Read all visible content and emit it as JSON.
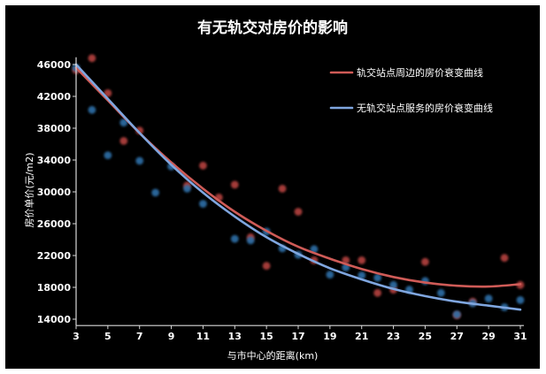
{
  "chart_data": {
    "type": "scatter",
    "title": "有无轨交对房价的影响",
    "xlabel": "与市中心的距离(km)",
    "ylabel": "房价单价(元/m2)",
    "xlim": [
      3,
      31
    ],
    "ylim": [
      13200,
      46800
    ],
    "xticks": [
      3,
      5,
      7,
      9,
      11,
      13,
      15,
      17,
      19,
      21,
      23,
      25,
      27,
      29,
      31
    ],
    "yticks": [
      14000,
      18000,
      22000,
      26000,
      30000,
      34000,
      38000,
      42000,
      46000
    ],
    "grid": false,
    "legend": "top-right",
    "series": [
      {
        "name": "轨交站点周边的房价衰变曲线",
        "type": "line",
        "color": "#cf5b57",
        "x": [
          3,
          5,
          7,
          9,
          11,
          13,
          15,
          17,
          19,
          21,
          23,
          25,
          27,
          29,
          31
        ],
        "y": [
          45600,
          41500,
          37400,
          33700,
          30400,
          27500,
          25100,
          23100,
          21600,
          20300,
          19300,
          18600,
          18200,
          18100,
          18400
        ]
      },
      {
        "name": "无轨交站点服务的房价衰变曲线",
        "type": "line",
        "color": "#7fa6df",
        "x": [
          3,
          5,
          7,
          9,
          11,
          13,
          15,
          17,
          19,
          21,
          23,
          25,
          27,
          29,
          31
        ],
        "y": [
          46000,
          41700,
          37400,
          33400,
          29900,
          26900,
          24300,
          22200,
          20400,
          19000,
          17800,
          16900,
          16200,
          15700,
          15200
        ]
      },
      {
        "type": "scatter",
        "color": "#b5423f",
        "x": [
          3,
          4,
          5,
          6,
          7,
          10,
          11,
          12,
          13,
          14,
          15,
          16,
          17,
          18,
          20,
          21,
          22,
          23,
          25,
          27,
          28,
          30,
          31
        ],
        "y": [
          45300,
          46800,
          42400,
          36400,
          37700,
          30800,
          33300,
          29300,
          30900,
          24300,
          20700,
          30400,
          27500,
          21400,
          21400,
          21400,
          17300,
          17700,
          21200,
          14500,
          16200,
          21700,
          18300
        ]
      },
      {
        "type": "scatter",
        "color": "#2f6fa8",
        "x": [
          3,
          4,
          5,
          6,
          7,
          8,
          9,
          10,
          11,
          13,
          14,
          15,
          16,
          17,
          18,
          19,
          20,
          21,
          22,
          23,
          24,
          25,
          26,
          27,
          28,
          29,
          30,
          31
        ],
        "y": [
          45600,
          40300,
          34600,
          38700,
          33900,
          29900,
          33200,
          30400,
          28500,
          24100,
          23900,
          25000,
          22900,
          22100,
          22800,
          19600,
          20500,
          19500,
          19200,
          18300,
          17700,
          18800,
          17300,
          14600,
          16000,
          16600,
          15500,
          16400
        ]
      }
    ]
  }
}
